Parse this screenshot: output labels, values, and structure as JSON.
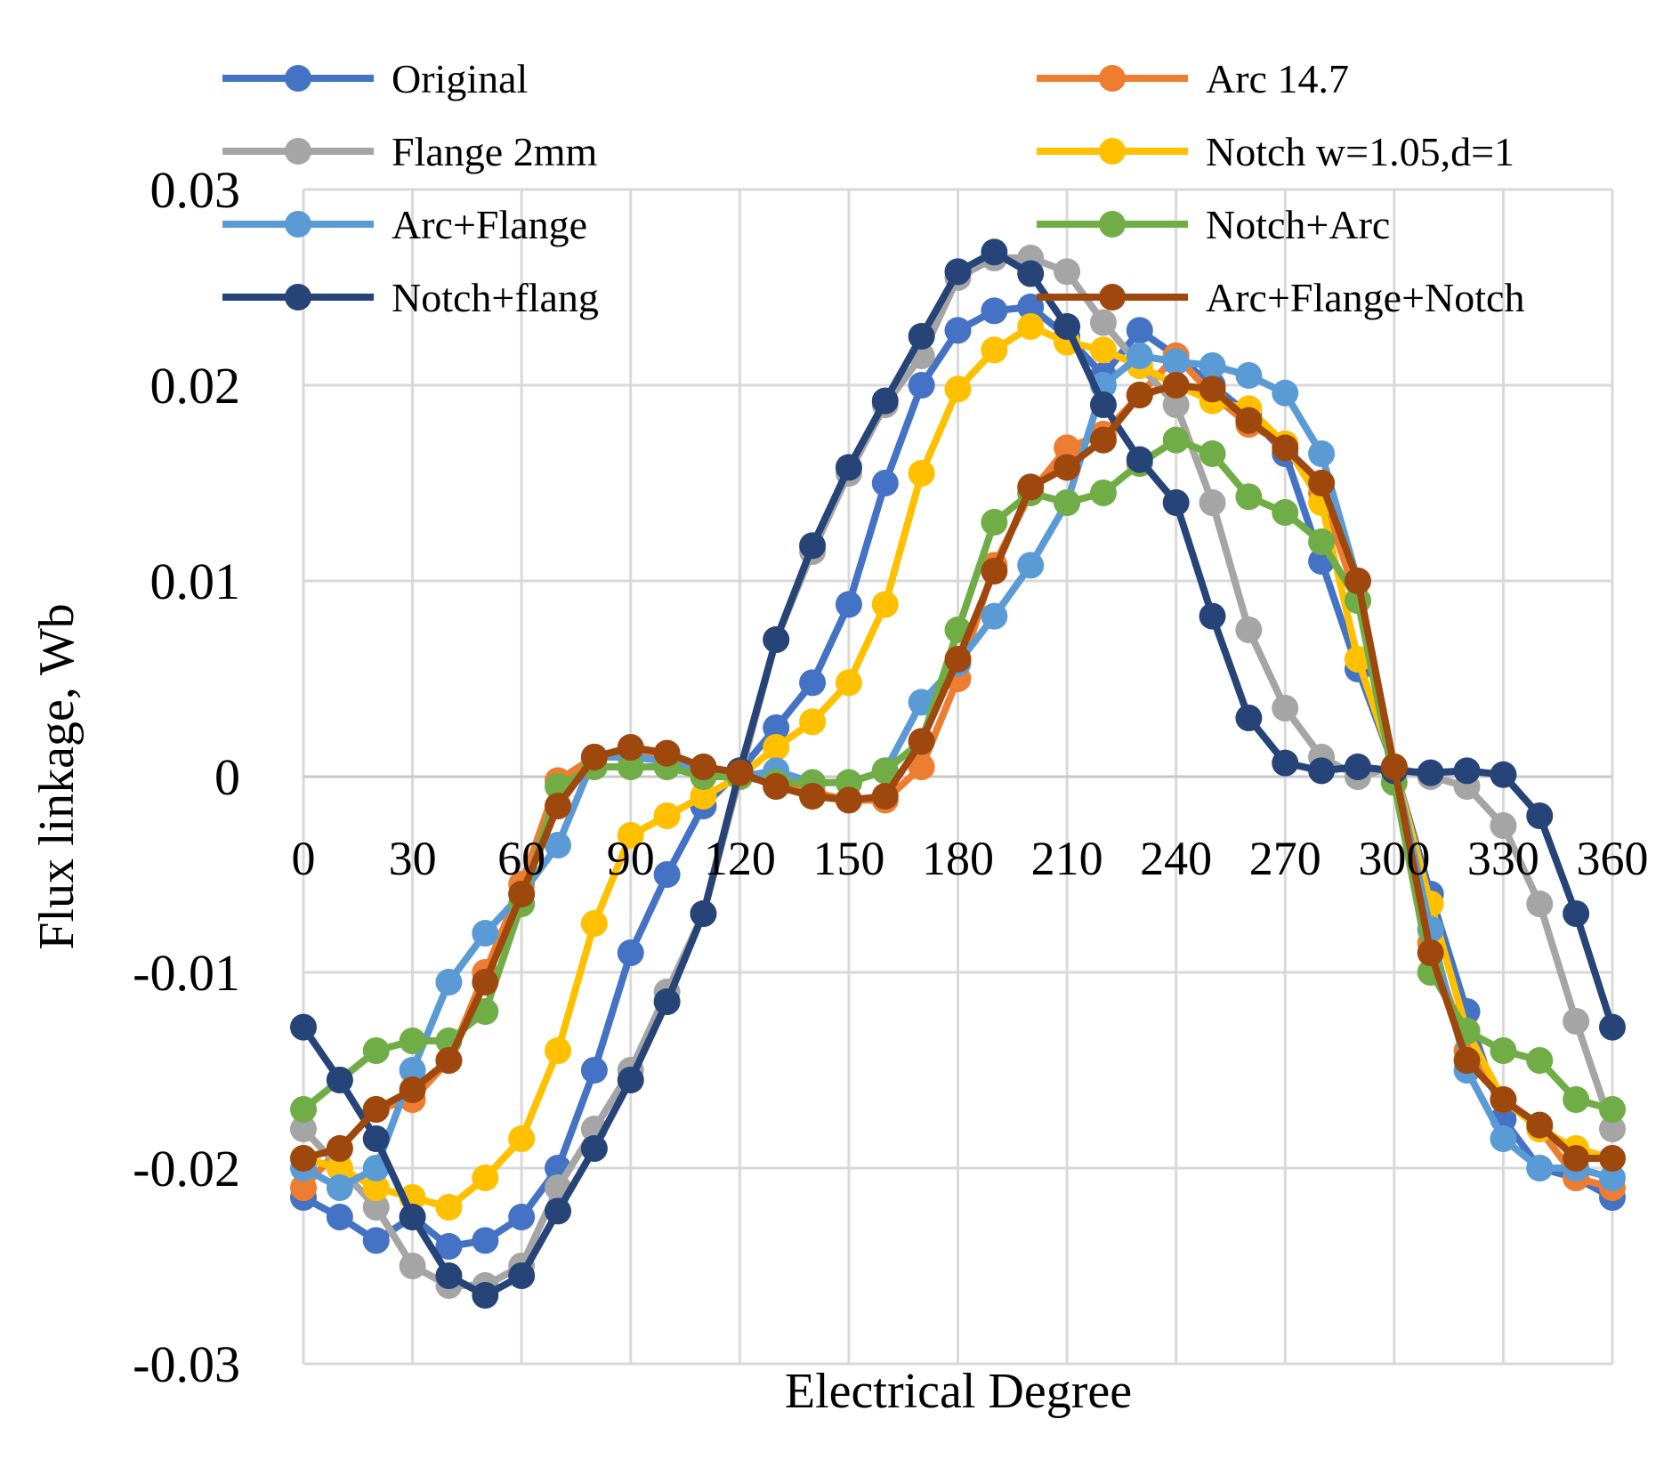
{
  "chart_data": {
    "type": "line",
    "title": "",
    "xlabel": "Electrical Degree",
    "ylabel": "Flux linkage, Wb",
    "xlim": [
      0,
      360
    ],
    "ylim": [
      -0.03,
      0.03
    ],
    "x_ticks": [
      "0",
      "30",
      "60",
      "90",
      "120",
      "150",
      "180",
      "210",
      "240",
      "270",
      "300",
      "330",
      "360"
    ],
    "y_ticks": [
      "0.03",
      "0.02",
      "0.01",
      "0",
      "-0.01",
      "-0.02",
      "-0.03"
    ],
    "y_tick_values": [
      0.03,
      0.02,
      0.01,
      0,
      -0.01,
      -0.02,
      -0.03
    ],
    "grid": true,
    "legend_position": "top",
    "x": [
      0,
      10,
      20,
      30,
      40,
      50,
      60,
      70,
      80,
      90,
      100,
      110,
      120,
      130,
      140,
      150,
      160,
      170,
      180,
      190,
      200,
      210,
      220,
      230,
      240,
      250,
      260,
      270,
      280,
      290,
      300,
      310,
      320,
      330,
      340,
      350,
      360
    ],
    "series": [
      {
        "name": "Original",
        "color": "#4472c4",
        "values": [
          -0.0215,
          -0.0225,
          -0.0237,
          -0.0225,
          -0.024,
          -0.0237,
          -0.0225,
          -0.02,
          -0.015,
          -0.009,
          -0.005,
          -0.0015,
          0.0003,
          0.0025,
          0.0048,
          0.0088,
          0.015,
          0.02,
          0.0228,
          0.0238,
          0.024,
          0.0225,
          0.0205,
          0.0228,
          0.0215,
          0.02,
          0.0185,
          0.0165,
          0.011,
          0.0055,
          0.0005,
          -0.006,
          -0.012,
          -0.0175,
          -0.02,
          -0.0205,
          -0.0215
        ]
      },
      {
        "name": "Arc 14.7",
        "color": "#ed7d31",
        "values": [
          -0.021,
          -0.019,
          -0.017,
          -0.0165,
          -0.0145,
          -0.01,
          -0.0055,
          -0.0002,
          0.001,
          0.0012,
          0.001,
          0.0005,
          0.0,
          -0.0003,
          -0.0008,
          -0.0012,
          -0.0012,
          0.0005,
          0.005,
          0.0108,
          0.0145,
          0.0168,
          0.0175,
          0.0195,
          0.0215,
          0.0195,
          0.018,
          0.017,
          0.0145,
          0.009,
          0.0005,
          -0.0085,
          -0.014,
          -0.0165,
          -0.018,
          -0.0205,
          -0.021
        ]
      },
      {
        "name": "Flange 2mm",
        "color": "#a5a5a5",
        "values": [
          -0.018,
          -0.02,
          -0.022,
          -0.025,
          -0.026,
          -0.026,
          -0.025,
          -0.021,
          -0.018,
          -0.015,
          -0.011,
          -0.007,
          0.0,
          0.007,
          0.0115,
          0.0155,
          0.019,
          0.0215,
          0.0255,
          0.0265,
          0.0265,
          0.0258,
          0.0232,
          0.021,
          0.019,
          0.014,
          0.0075,
          0.0035,
          0.001,
          0.0,
          0.0005,
          0.0,
          -0.0005,
          -0.0025,
          -0.0065,
          -0.0125,
          -0.018
        ]
      },
      {
        "name": "Notch w=1.05,d=1",
        "color": "#ffc000",
        "values": [
          -0.0195,
          -0.02,
          -0.021,
          -0.0215,
          -0.022,
          -0.0205,
          -0.0185,
          -0.014,
          -0.0075,
          -0.003,
          -0.002,
          -0.001,
          0.0,
          0.0015,
          0.0028,
          0.0048,
          0.0088,
          0.0155,
          0.0198,
          0.0218,
          0.023,
          0.0222,
          0.0218,
          0.021,
          0.02,
          0.0192,
          0.0188,
          0.017,
          0.014,
          0.006,
          0.0005,
          -0.0065,
          -0.013,
          -0.0165,
          -0.018,
          -0.019,
          -0.0195
        ]
      },
      {
        "name": "Arc+Flange",
        "color": "#5b9bd5",
        "values": [
          -0.02,
          -0.021,
          -0.02,
          -0.015,
          -0.0105,
          -0.008,
          -0.006,
          -0.0035,
          0.001,
          0.001,
          0.0008,
          0.0003,
          0.0,
          0.0003,
          -0.0003,
          -0.0003,
          0.0003,
          0.0038,
          0.0058,
          0.0082,
          0.0108,
          0.014,
          0.02,
          0.0215,
          0.0212,
          0.021,
          0.0205,
          0.0196,
          0.0165,
          0.01,
          0.0005,
          -0.0078,
          -0.015,
          -0.0185,
          -0.02,
          -0.02,
          -0.0205
        ]
      },
      {
        "name": "Notch+Arc",
        "color": "#70ad47",
        "values": [
          -0.017,
          -0.0155,
          -0.014,
          -0.0135,
          -0.0135,
          -0.012,
          -0.0065,
          -0.0005,
          0.0005,
          0.0005,
          0.0005,
          0.0,
          0.0,
          -0.0003,
          -0.0003,
          -0.0003,
          0.0003,
          0.0018,
          0.0075,
          0.013,
          0.0145,
          0.014,
          0.0145,
          0.016,
          0.0172,
          0.0165,
          0.0143,
          0.0135,
          0.012,
          0.009,
          -0.0003,
          -0.01,
          -0.013,
          -0.014,
          -0.0145,
          -0.0165,
          -0.017
        ]
      },
      {
        "name": "Notch+flang",
        "color": "#264478",
        "values": [
          -0.0128,
          -0.0155,
          -0.0185,
          -0.0225,
          -0.0255,
          -0.0265,
          -0.0255,
          -0.0222,
          -0.019,
          -0.0155,
          -0.0115,
          -0.007,
          0.0003,
          0.007,
          0.0118,
          0.0158,
          0.0192,
          0.0225,
          0.0258,
          0.0268,
          0.0257,
          0.023,
          0.019,
          0.0162,
          0.014,
          0.0082,
          0.003,
          0.0007,
          0.0003,
          0.0005,
          0.0003,
          0.0002,
          0.0003,
          0.0001,
          -0.002,
          -0.007,
          -0.0128
        ]
      },
      {
        "name": "Arc+Flange+Notch",
        "color": "#9e480e",
        "values": [
          -0.0195,
          -0.019,
          -0.017,
          -0.016,
          -0.0145,
          -0.0105,
          -0.006,
          -0.0015,
          0.001,
          0.0015,
          0.0012,
          0.0005,
          0.0002,
          -0.0005,
          -0.001,
          -0.0012,
          -0.001,
          0.0018,
          0.006,
          0.0105,
          0.0148,
          0.0158,
          0.0172,
          0.0195,
          0.02,
          0.0198,
          0.0182,
          0.0168,
          0.015,
          0.01,
          0.0005,
          -0.009,
          -0.0145,
          -0.0165,
          -0.0178,
          -0.0195,
          -0.0195
        ]
      }
    ]
  }
}
